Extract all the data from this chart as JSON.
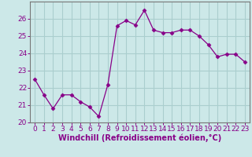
{
  "x": [
    0,
    1,
    2,
    3,
    4,
    5,
    6,
    7,
    8,
    9,
    10,
    11,
    12,
    13,
    14,
    15,
    16,
    17,
    18,
    19,
    20,
    21,
    22,
    23
  ],
  "y": [
    22.5,
    21.6,
    20.8,
    21.6,
    21.6,
    21.2,
    20.9,
    20.35,
    22.2,
    25.6,
    25.9,
    25.65,
    26.5,
    25.35,
    25.2,
    25.2,
    25.35,
    25.35,
    25.0,
    24.5,
    23.8,
    23.95,
    23.95,
    23.5
  ],
  "line_color": "#880088",
  "marker": "D",
  "marker_size": 2.5,
  "background_color": "#cce8e8",
  "grid_color": "#aacece",
  "xlabel": "Windchill (Refroidissement éolien,°C)",
  "xlabel_fontsize": 7,
  "tick_fontsize": 6.5,
  "ylim": [
    20,
    27
  ],
  "xlim": [
    -0.5,
    23.5
  ],
  "yticks": [
    20,
    21,
    22,
    23,
    24,
    25,
    26
  ],
  "xticks": [
    0,
    1,
    2,
    3,
    4,
    5,
    6,
    7,
    8,
    9,
    10,
    11,
    12,
    13,
    14,
    15,
    16,
    17,
    18,
    19,
    20,
    21,
    22,
    23
  ]
}
